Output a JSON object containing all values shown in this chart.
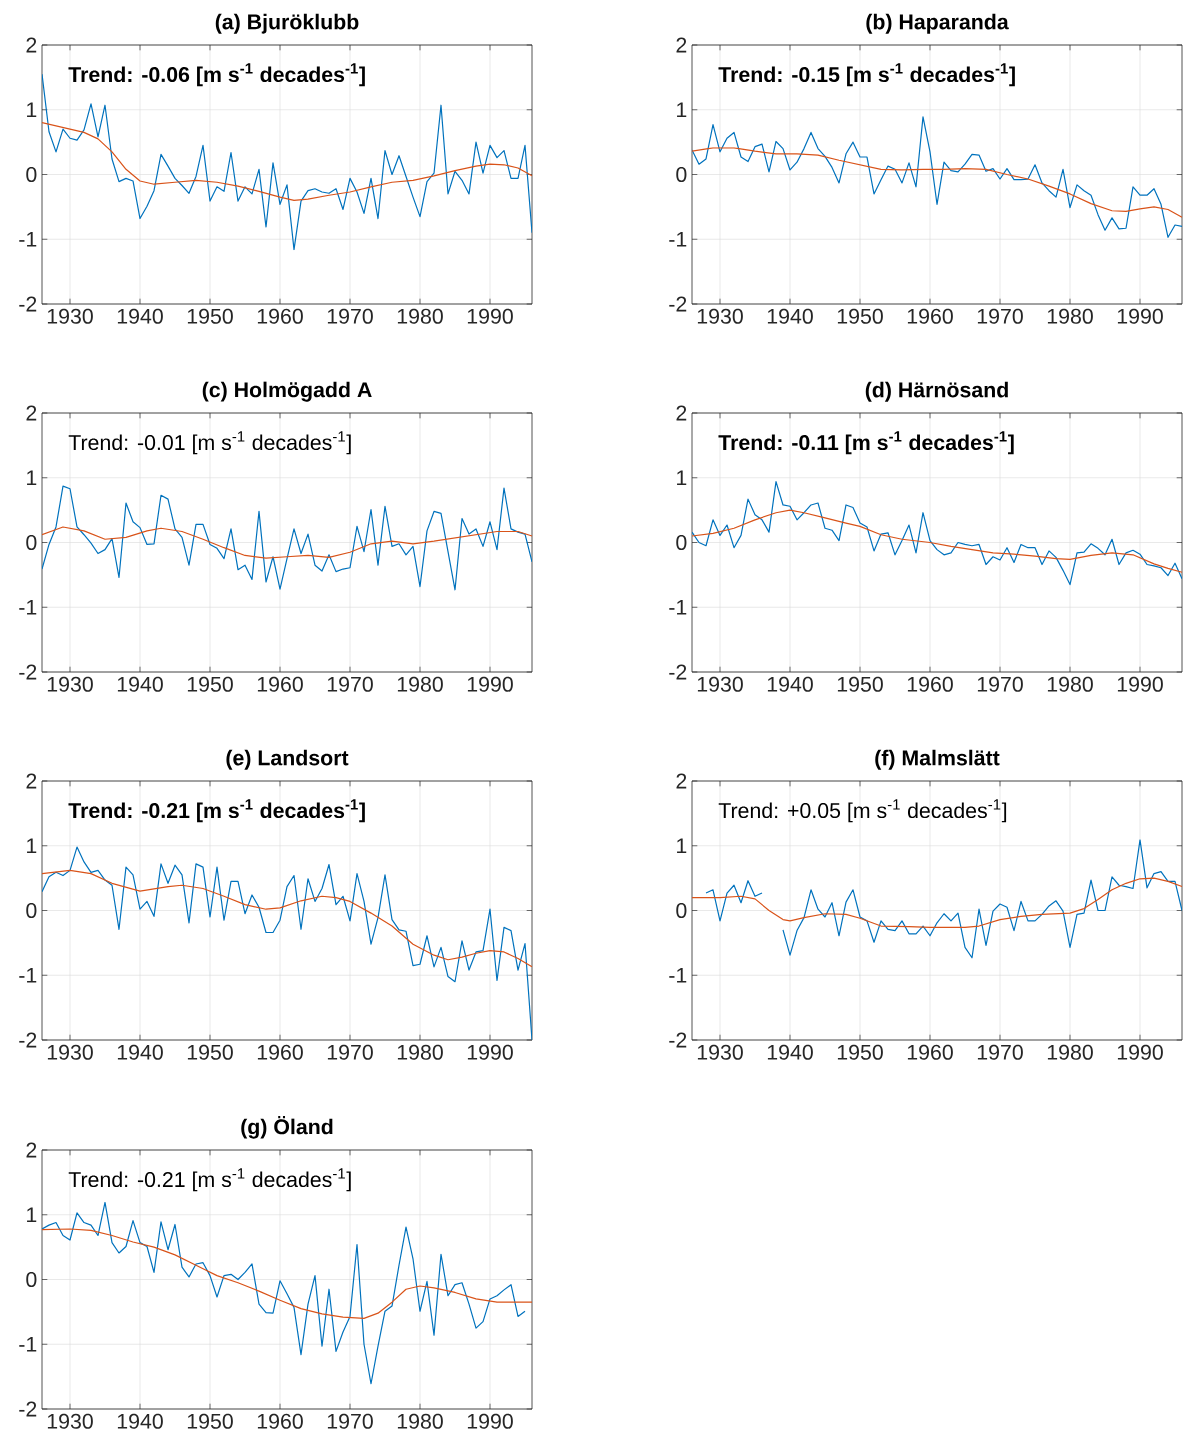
{
  "chart_data": [
    {
      "type": "line",
      "title": "(a) Bjuröklubb",
      "annotations": [
        "Trend: -0.06 [m s$^{-1}$ decades$^{-1}$]"
      ],
      "x": [
        1926,
        1927,
        1928,
        1929,
        1930,
        1931,
        1932,
        1933,
        1934,
        1935,
        1936,
        1937,
        1938,
        1939,
        1940,
        1941,
        1942,
        1943,
        1944,
        1945,
        1946,
        1947,
        1948,
        1949,
        1950,
        1951,
        1952,
        1953,
        1954,
        1955,
        1956,
        1957,
        1958,
        1959,
        1960,
        1961,
        1962,
        1963,
        1964,
        1965,
        1966,
        1967,
        1968,
        1969,
        1970,
        1971,
        1972,
        1973,
        1974,
        1975,
        1976,
        1977,
        1978,
        1979,
        1980,
        1981,
        1982,
        1983,
        1984,
        1985,
        1986,
        1987,
        1988,
        1989,
        1990,
        1991,
        1992,
        1993,
        1994,
        1995,
        1996
      ],
      "series": [
        {
          "color": "#0072bd",
          "values": [
            1.55,
            0.66,
            0.35,
            0.7,
            0.56,
            0.53,
            0.69,
            1.09,
            0.58,
            1.07,
            0.24,
            -0.11,
            -0.06,
            -0.1,
            -0.68,
            -0.49,
            -0.25,
            0.31,
            0.13,
            -0.06,
            -0.17,
            -0.29,
            -0.03,
            0.45,
            -0.41,
            -0.19,
            -0.26,
            0.34,
            -0.41,
            -0.19,
            -0.3,
            0.08,
            -0.81,
            0.18,
            -0.46,
            -0.16,
            -1.16,
            -0.41,
            -0.25,
            -0.22,
            -0.27,
            -0.29,
            -0.22,
            -0.54,
            -0.06,
            -0.27,
            -0.6,
            -0.06,
            -0.68,
            0.37,
            0.0,
            0.29,
            -0.03,
            -0.35,
            -0.65,
            -0.11,
            0.02,
            1.07,
            -0.3,
            0.05,
            -0.09,
            -0.3,
            0.5,
            0.02,
            0.45,
            0.26,
            0.37,
            -0.06,
            -0.06,
            0.45,
            -0.9
          ]
        },
        {
          "color": "#d95319",
          "x": [
            1926,
            1928,
            1930,
            1932,
            1934,
            1936,
            1938,
            1940,
            1942,
            1945,
            1948,
            1951,
            1954,
            1957,
            1960,
            1962,
            1964,
            1967,
            1970,
            1973,
            1976,
            1979,
            1982,
            1985,
            1988,
            1990,
            1992,
            1994,
            1996
          ],
          "values": [
            0.8,
            0.75,
            0.7,
            0.65,
            0.55,
            0.35,
            0.08,
            -0.1,
            -0.15,
            -0.12,
            -0.09,
            -0.12,
            -0.18,
            -0.26,
            -0.35,
            -0.4,
            -0.38,
            -0.32,
            -0.27,
            -0.19,
            -0.12,
            -0.09,
            -0.02,
            0.06,
            0.13,
            0.16,
            0.15,
            0.1,
            -0.02
          ]
        }
      ],
      "xlim": [
        1926,
        1996
      ],
      "ylim": [
        -2,
        2
      ],
      "xticks": [
        1930,
        1940,
        1950,
        1960,
        1970,
        1980,
        1990
      ],
      "yticks": [
        -2,
        -1,
        0,
        1,
        2
      ],
      "grid": true
    },
    {
      "type": "line",
      "title": "(b) Haparanda",
      "annotations": [
        "Trend: -0.15 [m s$^{-1}$ decades$^{-1}$]"
      ],
      "x": [
        1926,
        1927,
        1928,
        1929,
        1930,
        1931,
        1932,
        1933,
        1934,
        1935,
        1936,
        1937,
        1938,
        1939,
        1940,
        1941,
        1942,
        1943,
        1944,
        1945,
        1946,
        1947,
        1948,
        1949,
        1950,
        1951,
        1952,
        1953,
        1954,
        1955,
        1956,
        1957,
        1958,
        1959,
        1960,
        1961,
        1962,
        1963,
        1964,
        1965,
        1966,
        1967,
        1968,
        1969,
        1970,
        1971,
        1972,
        1973,
        1974,
        1975,
        1976,
        1977,
        1978,
        1979,
        1980,
        1981,
        1982,
        1983,
        1984,
        1985,
        1986,
        1987,
        1988,
        1989,
        1990,
        1991,
        1992,
        1993,
        1994,
        1995,
        1996
      ],
      "series": [
        {
          "color": "#0072bd",
          "values": [
            0.38,
            0.16,
            0.24,
            0.77,
            0.35,
            0.56,
            0.65,
            0.27,
            0.2,
            0.43,
            0.47,
            0.04,
            0.51,
            0.4,
            0.07,
            0.19,
            0.4,
            0.65,
            0.4,
            0.28,
            0.11,
            -0.13,
            0.32,
            0.5,
            0.27,
            0.27,
            -0.3,
            -0.08,
            0.13,
            0.08,
            -0.13,
            0.18,
            -0.19,
            0.89,
            0.35,
            -0.46,
            0.19,
            0.06,
            0.04,
            0.16,
            0.31,
            0.3,
            0.05,
            0.09,
            -0.07,
            0.09,
            -0.08,
            -0.08,
            -0.07,
            0.15,
            -0.13,
            -0.25,
            -0.35,
            0.08,
            -0.51,
            -0.16,
            -0.25,
            -0.32,
            -0.62,
            -0.86,
            -0.67,
            -0.84,
            -0.83,
            -0.19,
            -0.32,
            -0.32,
            -0.22,
            -0.46,
            -0.97,
            -0.78,
            -0.8
          ]
        },
        {
          "color": "#d95319",
          "x": [
            1926,
            1929,
            1932,
            1935,
            1938,
            1941,
            1944,
            1947,
            1950,
            1953,
            1956,
            1959,
            1962,
            1965,
            1968,
            1971,
            1974,
            1977,
            1980,
            1983,
            1986,
            1988,
            1990,
            1992,
            1994,
            1996
          ],
          "values": [
            0.36,
            0.41,
            0.41,
            0.36,
            0.32,
            0.32,
            0.3,
            0.22,
            0.15,
            0.08,
            0.07,
            0.08,
            0.08,
            0.09,
            0.08,
            0.0,
            -0.07,
            -0.18,
            -0.3,
            -0.45,
            -0.56,
            -0.57,
            -0.53,
            -0.5,
            -0.54,
            -0.66
          ]
        }
      ],
      "xlim": [
        1926,
        1996
      ],
      "ylim": [
        -2,
        2
      ],
      "xticks": [
        1930,
        1940,
        1950,
        1960,
        1970,
        1980,
        1990
      ],
      "yticks": [
        -2,
        -1,
        0,
        1,
        2
      ],
      "grid": true
    },
    {
      "type": "line",
      "title": "(c) Holmögadd A",
      "annotations": [
        "Trend: -0.01 [m s$^{-1}$ decades$^{-1}$]"
      ],
      "x": [
        1926,
        1927,
        1928,
        1929,
        1930,
        1931,
        1932,
        1933,
        1934,
        1935,
        1936,
        1937,
        1938,
        1939,
        1940,
        1941,
        1942,
        1943,
        1944,
        1945,
        1946,
        1947,
        1948,
        1949,
        1950,
        1951,
        1952,
        1953,
        1954,
        1955,
        1956,
        1957,
        1958,
        1959,
        1960,
        1961,
        1962,
        1963,
        1964,
        1965,
        1966,
        1967,
        1968,
        1969,
        1970,
        1971,
        1972,
        1973,
        1974,
        1975,
        1976,
        1977,
        1978,
        1979,
        1980,
        1981,
        1982,
        1983,
        1984,
        1985,
        1986,
        1987,
        1988,
        1989,
        1990,
        1991,
        1992,
        1993,
        1994,
        1995,
        1996
      ],
      "series": [
        {
          "color": "#0072bd",
          "values": [
            -0.41,
            -0.03,
            0.24,
            0.87,
            0.83,
            0.24,
            0.12,
            -0.01,
            -0.17,
            -0.11,
            0.06,
            -0.54,
            0.61,
            0.32,
            0.23,
            -0.03,
            -0.02,
            0.73,
            0.67,
            0.21,
            0.08,
            -0.35,
            0.28,
            0.28,
            -0.03,
            -0.09,
            -0.25,
            0.21,
            -0.42,
            -0.35,
            -0.57,
            0.48,
            -0.61,
            -0.22,
            -0.72,
            -0.25,
            0.21,
            -0.17,
            0.13,
            -0.35,
            -0.44,
            -0.19,
            -0.45,
            -0.41,
            -0.39,
            0.25,
            -0.14,
            0.51,
            -0.35,
            0.56,
            -0.06,
            -0.02,
            -0.19,
            -0.06,
            -0.68,
            0.18,
            0.48,
            0.45,
            -0.14,
            -0.73,
            0.37,
            0.13,
            0.21,
            -0.06,
            0.32,
            -0.11,
            0.84,
            0.21,
            0.16,
            0.13,
            -0.3
          ]
        },
        {
          "color": "#d95319",
          "x": [
            1926,
            1929,
            1932,
            1935,
            1938,
            1941,
            1943,
            1946,
            1949,
            1952,
            1955,
            1958,
            1961,
            1964,
            1967,
            1970,
            1973,
            1976,
            1979,
            1982,
            1985,
            1988,
            1991,
            1994,
            1996
          ],
          "values": [
            0.12,
            0.24,
            0.18,
            0.05,
            0.08,
            0.18,
            0.22,
            0.17,
            0.05,
            -0.08,
            -0.2,
            -0.24,
            -0.22,
            -0.2,
            -0.23,
            -0.15,
            -0.02,
            0.02,
            -0.02,
            0.02,
            0.07,
            0.12,
            0.17,
            0.17,
            0.1
          ]
        }
      ],
      "xlim": [
        1926,
        1996
      ],
      "ylim": [
        -2,
        2
      ],
      "xticks": [
        1930,
        1940,
        1950,
        1960,
        1970,
        1980,
        1990
      ],
      "yticks": [
        -2,
        -1,
        0,
        1,
        2
      ],
      "grid": true
    },
    {
      "type": "line",
      "title": "(d) Härnösand",
      "annotations": [
        "Trend: -0.11 [m s$^{-1}$ decades$^{-1}$]"
      ],
      "x": [
        1926,
        1927,
        1928,
        1929,
        1930,
        1931,
        1932,
        1933,
        1934,
        1935,
        1936,
        1937,
        1938,
        1939,
        1940,
        1941,
        1942,
        1943,
        1944,
        1945,
        1946,
        1947,
        1948,
        1949,
        1950,
        1951,
        1952,
        1953,
        1954,
        1955,
        1956,
        1957,
        1958,
        1959,
        1960,
        1961,
        1962,
        1963,
        1964,
        1965,
        1966,
        1967,
        1968,
        1969,
        1970,
        1971,
        1972,
        1973,
        1974,
        1975,
        1976,
        1977,
        1978,
        1979,
        1980,
        1981,
        1982,
        1983,
        1984,
        1985,
        1986,
        1987,
        1988,
        1989,
        1990,
        1991,
        1992,
        1993,
        1994,
        1995,
        1996
      ],
      "series": [
        {
          "color": "#0072bd",
          "values": [
            0.16,
            0.0,
            -0.05,
            0.35,
            0.11,
            0.27,
            -0.08,
            0.11,
            0.67,
            0.43,
            0.35,
            0.16,
            0.94,
            0.58,
            0.56,
            0.35,
            0.46,
            0.58,
            0.61,
            0.22,
            0.19,
            0.03,
            0.58,
            0.54,
            0.3,
            0.24,
            -0.13,
            0.13,
            0.15,
            -0.19,
            0.03,
            0.27,
            -0.16,
            0.46,
            0.03,
            -0.11,
            -0.19,
            -0.16,
            0.0,
            -0.03,
            -0.05,
            -0.03,
            -0.34,
            -0.22,
            -0.27,
            -0.08,
            -0.31,
            -0.03,
            -0.08,
            -0.08,
            -0.34,
            -0.13,
            -0.23,
            -0.43,
            -0.65,
            -0.16,
            -0.15,
            -0.02,
            -0.09,
            -0.19,
            0.05,
            -0.34,
            -0.16,
            -0.12,
            -0.18,
            -0.34,
            -0.36,
            -0.39,
            -0.51,
            -0.32,
            -0.56
          ]
        },
        {
          "color": "#d95319",
          "x": [
            1926,
            1929,
            1932,
            1935,
            1938,
            1940,
            1942,
            1945,
            1948,
            1950,
            1953,
            1956,
            1960,
            1963,
            1966,
            1969,
            1972,
            1975,
            1978,
            1980,
            1983,
            1986,
            1989,
            1992,
            1994,
            1996
          ],
          "values": [
            0.1,
            0.14,
            0.22,
            0.35,
            0.46,
            0.5,
            0.46,
            0.38,
            0.3,
            0.25,
            0.12,
            0.05,
            0.0,
            -0.06,
            -0.11,
            -0.16,
            -0.18,
            -0.21,
            -0.25,
            -0.26,
            -0.2,
            -0.16,
            -0.19,
            -0.33,
            -0.4,
            -0.46
          ]
        }
      ],
      "xlim": [
        1926,
        1996
      ],
      "ylim": [
        -2,
        2
      ],
      "xticks": [
        1930,
        1940,
        1950,
        1960,
        1970,
        1980,
        1990
      ],
      "yticks": [
        -2,
        -1,
        0,
        1,
        2
      ],
      "grid": true
    },
    {
      "type": "line",
      "title": "(e) Landsort",
      "annotations": [
        "Trend: -0.21 [m s$^{-1}$ decades$^{-1}$]"
      ],
      "x": [
        1926,
        1927,
        1928,
        1929,
        1930,
        1931,
        1932,
        1933,
        1934,
        1935,
        1936,
        1937,
        1938,
        1939,
        1940,
        1941,
        1942,
        1943,
        1944,
        1945,
        1946,
        1947,
        1948,
        1949,
        1950,
        1951,
        1952,
        1953,
        1954,
        1955,
        1956,
        1957,
        1958,
        1959,
        1960,
        1961,
        1962,
        1963,
        1964,
        1965,
        1966,
        1967,
        1968,
        1969,
        1970,
        1971,
        1972,
        1973,
        1974,
        1975,
        1976,
        1977,
        1978,
        1979,
        1980,
        1981,
        1982,
        1983,
        1984,
        1985,
        1986,
        1987,
        1988,
        1989,
        1990,
        1991,
        1992,
        1993,
        1994,
        1995,
        1996
      ],
      "series": [
        {
          "color": "#0072bd",
          "values": [
            0.29,
            0.52,
            0.59,
            0.54,
            0.62,
            0.98,
            0.75,
            0.59,
            0.62,
            0.47,
            0.39,
            -0.29,
            0.67,
            0.55,
            0.02,
            0.14,
            -0.09,
            0.72,
            0.42,
            0.7,
            0.55,
            -0.19,
            0.72,
            0.67,
            -0.1,
            0.67,
            -0.15,
            0.45,
            0.45,
            -0.05,
            0.24,
            0.05,
            -0.34,
            -0.34,
            -0.15,
            0.37,
            0.54,
            -0.29,
            0.49,
            0.14,
            0.34,
            0.71,
            0.09,
            0.22,
            -0.16,
            0.57,
            0.14,
            -0.52,
            -0.11,
            0.55,
            -0.14,
            -0.3,
            -0.32,
            -0.85,
            -0.83,
            -0.39,
            -0.87,
            -0.57,
            -1.02,
            -1.1,
            -0.47,
            -0.92,
            -0.64,
            -0.62,
            0.02,
            -1.08,
            -0.26,
            -0.31,
            -0.92,
            -0.51,
            -2.0
          ]
        },
        {
          "color": "#d95319",
          "x": [
            1926,
            1930,
            1933,
            1936,
            1940,
            1944,
            1946,
            1949,
            1952,
            1955,
            1958,
            1960,
            1963,
            1966,
            1968,
            1970,
            1973,
            1976,
            1979,
            1982,
            1984,
            1986,
            1988,
            1990,
            1992,
            1994,
            1996
          ],
          "values": [
            0.57,
            0.62,
            0.57,
            0.42,
            0.3,
            0.37,
            0.39,
            0.34,
            0.22,
            0.09,
            0.02,
            0.04,
            0.15,
            0.22,
            0.2,
            0.14,
            -0.04,
            -0.24,
            -0.52,
            -0.69,
            -0.76,
            -0.72,
            -0.66,
            -0.62,
            -0.64,
            -0.74,
            -0.87
          ]
        }
      ],
      "xlim": [
        1926,
        1996
      ],
      "ylim": [
        -2,
        2
      ],
      "xticks": [
        1930,
        1940,
        1950,
        1960,
        1970,
        1980,
        1990
      ],
      "yticks": [
        -2,
        -1,
        0,
        1,
        2
      ],
      "grid": true
    },
    {
      "type": "line",
      "title": "(f) Malmslätt",
      "annotations": [
        "Trend: +0.05 [m s$^{-1}$ decades$^{-1}$]"
      ],
      "series": [
        {
          "color": "#0072bd",
          "x": [
            1928,
            1929,
            1930,
            1931,
            1932,
            1933,
            1934,
            1935,
            1936,
            1937,
            1938,
            1939,
            1940,
            1941,
            1942,
            1943,
            1944,
            1945,
            1946,
            1947,
            1948,
            1949,
            1950,
            1951,
            1952,
            1953,
            1954,
            1955,
            1956,
            1957,
            1958,
            1959,
            1960,
            1961,
            1962,
            1963,
            1964,
            1965,
            1966,
            1967,
            1968,
            1969,
            1970,
            1971,
            1972,
            1973,
            1974,
            1975,
            1976,
            1977,
            1978,
            1979,
            1980,
            1981,
            1982,
            1983,
            1984,
            1985,
            1986,
            1987,
            1988,
            1989,
            1990,
            1991,
            1992,
            1993,
            1994,
            1995,
            1996
          ],
          "values": [
            0.27,
            0.32,
            -0.16,
            0.27,
            0.39,
            0.12,
            0.46,
            0.22,
            0.27,
            null,
            null,
            -0.3,
            -0.69,
            -0.31,
            -0.11,
            0.32,
            0.02,
            -0.1,
            0.12,
            -0.39,
            0.13,
            0.32,
            -0.1,
            -0.16,
            -0.49,
            -0.16,
            -0.29,
            -0.31,
            -0.16,
            -0.36,
            -0.36,
            -0.24,
            -0.39,
            -0.19,
            -0.05,
            -0.16,
            -0.04,
            -0.57,
            -0.73,
            0.02,
            -0.54,
            -0.01,
            0.1,
            0.05,
            -0.31,
            0.14,
            -0.16,
            -0.16,
            -0.06,
            0.07,
            0.15,
            -0.01,
            -0.57,
            -0.06,
            -0.04,
            0.47,
            0.0,
            0.0,
            0.52,
            0.39,
            0.37,
            0.34,
            1.09,
            0.35,
            0.57,
            0.6,
            0.45,
            0.45,
            0.0
          ]
        },
        {
          "color": "#d95319",
          "x": [
            1926,
            1930,
            1933,
            1935,
            1937,
            1939,
            1940,
            1942,
            1945,
            1948,
            1950,
            1953,
            1957,
            1960,
            1965,
            1967,
            1970,
            1973,
            1976,
            1980,
            1982,
            1984,
            1986,
            1988,
            1990,
            1992,
            1994,
            1996
          ],
          "values": [
            0.2,
            0.2,
            0.22,
            0.18,
            0.0,
            -0.14,
            -0.16,
            -0.11,
            -0.05,
            -0.06,
            -0.12,
            -0.24,
            -0.25,
            -0.26,
            -0.26,
            -0.24,
            -0.14,
            -0.09,
            -0.06,
            -0.04,
            0.03,
            0.17,
            0.32,
            0.42,
            0.49,
            0.5,
            0.45,
            0.37
          ]
        }
      ],
      "xlim": [
        1926,
        1996
      ],
      "ylim": [
        -2,
        2
      ],
      "xticks": [
        1930,
        1940,
        1950,
        1960,
        1970,
        1980,
        1990
      ],
      "yticks": [
        -2,
        -1,
        0,
        1,
        2
      ],
      "grid": true
    },
    {
      "type": "line",
      "title": "(g) Öland",
      "annotations": [
        "Trend: -0.21 [m s$^{-1}$ decades$^{-1}$]"
      ],
      "series": [
        {
          "color": "#0072bd",
          "x": [
            1926,
            1927,
            1928,
            1929,
            1930,
            1931,
            1932,
            1933,
            1934,
            1935,
            1936,
            1937,
            1938,
            1939,
            1940,
            1941,
            1942,
            1943,
            1944,
            1945,
            1946,
            1947,
            1948,
            1949,
            1950,
            1951,
            1952,
            1953,
            1954,
            1955,
            1956,
            1957,
            1958,
            1959,
            1960,
            1961,
            1962,
            1963,
            1964,
            1965,
            1966,
            1967,
            1968,
            1969,
            1970,
            1971,
            1972,
            1973,
            1974,
            1975,
            1976,
            1977,
            1978,
            1979,
            1980,
            1981,
            1982,
            1983,
            1984,
            1985,
            1986,
            1987,
            1988,
            1989,
            1990,
            1991,
            1992,
            1993,
            1994,
            1995
          ],
          "values": [
            0.78,
            0.84,
            0.88,
            0.68,
            0.61,
            1.03,
            0.88,
            0.84,
            0.68,
            1.19,
            0.57,
            0.41,
            0.51,
            0.91,
            0.57,
            0.51,
            0.11,
            0.89,
            0.46,
            0.85,
            0.19,
            0.04,
            0.24,
            0.26,
            0.06,
            -0.27,
            0.06,
            0.08,
            0.0,
            0.11,
            0.24,
            -0.38,
            -0.51,
            -0.52,
            -0.02,
            -0.22,
            -0.43,
            -1.16,
            -0.38,
            0.06,
            -1.03,
            -0.15,
            -1.11,
            -0.81,
            -0.57,
            0.54,
            -1.0,
            -1.61,
            -1.03,
            -0.49,
            -0.41,
            0.22,
            0.81,
            0.32,
            -0.49,
            -0.03,
            -0.86,
            0.39,
            -0.25,
            -0.08,
            -0.05,
            -0.38,
            -0.75,
            -0.65,
            -0.3,
            -0.25,
            -0.16,
            -0.08,
            -0.57,
            -0.49
          ]
        },
        {
          "color": "#d95319",
          "x": [
            1926,
            1930,
            1933,
            1936,
            1939,
            1942,
            1945,
            1948,
            1951,
            1954,
            1957,
            1960,
            1963,
            1966,
            1969,
            1972,
            1974,
            1976,
            1978,
            1980,
            1982,
            1985,
            1988,
            1991,
            1994,
            1996
          ],
          "values": [
            0.77,
            0.78,
            0.76,
            0.68,
            0.58,
            0.5,
            0.38,
            0.22,
            0.06,
            -0.05,
            -0.18,
            -0.32,
            -0.45,
            -0.53,
            -0.58,
            -0.6,
            -0.52,
            -0.35,
            -0.15,
            -0.1,
            -0.13,
            -0.2,
            -0.3,
            -0.35,
            -0.35,
            -0.35
          ]
        }
      ],
      "xlim": [
        1926,
        1996
      ],
      "ylim": [
        -2,
        2
      ],
      "xticks": [
        1930,
        1940,
        1950,
        1960,
        1970,
        1980,
        1990
      ],
      "yticks": [
        -2,
        -1,
        0,
        1,
        2
      ],
      "grid": true
    }
  ]
}
